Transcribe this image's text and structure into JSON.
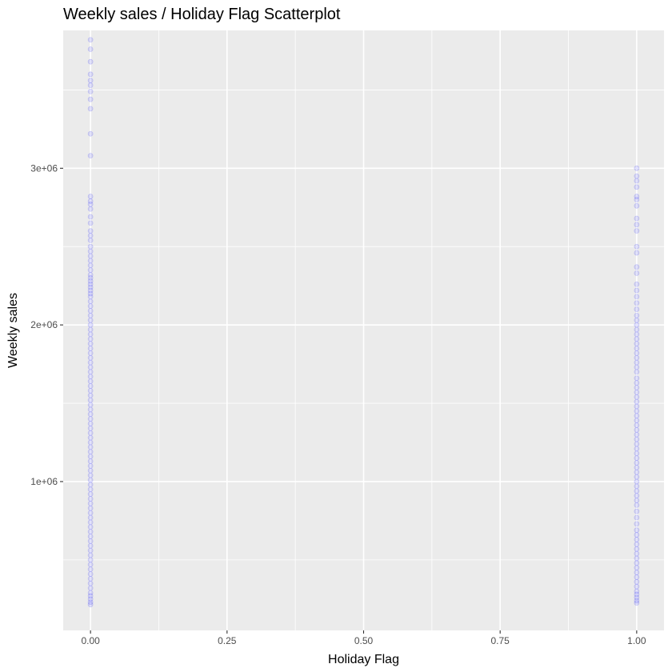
{
  "chart_data": {
    "type": "scatter",
    "title": "Weekly sales / Holiday Flag Scatterplot",
    "xlabel": "Holiday Flag",
    "ylabel": "Weekly sales",
    "xlim": [
      -0.05,
      1.05
    ],
    "ylim": [
      50000,
      3880000
    ],
    "x_ticks": [
      0,
      0.25,
      0.5,
      0.75,
      1
    ],
    "x_tick_labels": [
      "0.00",
      "0.25",
      "0.50",
      "0.75",
      "1.00"
    ],
    "y_ticks": [
      1000000,
      2000000,
      3000000
    ],
    "y_tick_labels": [
      "1e+06",
      "2e+06",
      "3e+06"
    ],
    "grid": true,
    "background": "#ebebeb",
    "point_color": "#0000ff",
    "point_alpha": 0.1,
    "series": [
      {
        "x": 0,
        "values": [
          3820000,
          3760000,
          3680000,
          3600000,
          3560000,
          3530000,
          3490000,
          3440000,
          3380000,
          3220000,
          3080000,
          2820000,
          2790000,
          2770000,
          2740000,
          2690000,
          2650000,
          2600000,
          2570000,
          2540000,
          2500000,
          2470000,
          2440000,
          2410000,
          2380000,
          2350000,
          2320000,
          2300000,
          2280000,
          2260000,
          2240000,
          2220000,
          2200000,
          2180000,
          2150000,
          2120000,
          2090000,
          2060000,
          2030000,
          2000000,
          1970000,
          1940000,
          1910000,
          1880000,
          1850000,
          1820000,
          1790000,
          1760000,
          1730000,
          1700000,
          1670000,
          1640000,
          1610000,
          1580000,
          1550000,
          1520000,
          1490000,
          1460000,
          1430000,
          1400000,
          1370000,
          1340000,
          1310000,
          1280000,
          1250000,
          1220000,
          1190000,
          1160000,
          1130000,
          1100000,
          1070000,
          1040000,
          1010000,
          980000,
          950000,
          920000,
          890000,
          860000,
          830000,
          800000,
          770000,
          740000,
          710000,
          680000,
          650000,
          620000,
          590000,
          560000,
          530000,
          500000,
          470000,
          440000,
          410000,
          380000,
          350000,
          320000,
          290000,
          270000,
          250000,
          230000,
          215000
        ]
      },
      {
        "x": 1,
        "values": [
          3000000,
          2950000,
          2920000,
          2880000,
          2820000,
          2800000,
          2760000,
          2680000,
          2640000,
          2600000,
          2500000,
          2460000,
          2370000,
          2330000,
          2260000,
          2220000,
          2180000,
          2140000,
          2100000,
          2060000,
          2030000,
          2000000,
          1970000,
          1940000,
          1910000,
          1880000,
          1850000,
          1820000,
          1790000,
          1760000,
          1730000,
          1700000,
          1660000,
          1630000,
          1600000,
          1570000,
          1540000,
          1510000,
          1480000,
          1450000,
          1420000,
          1390000,
          1360000,
          1330000,
          1300000,
          1270000,
          1240000,
          1210000,
          1180000,
          1150000,
          1120000,
          1090000,
          1060000,
          1030000,
          1000000,
          970000,
          940000,
          910000,
          880000,
          850000,
          810000,
          770000,
          730000,
          690000,
          660000,
          630000,
          600000,
          570000,
          540000,
          510000,
          480000,
          450000,
          420000,
          390000,
          360000,
          330000,
          300000,
          280000,
          260000,
          240000,
          225000
        ]
      }
    ]
  }
}
